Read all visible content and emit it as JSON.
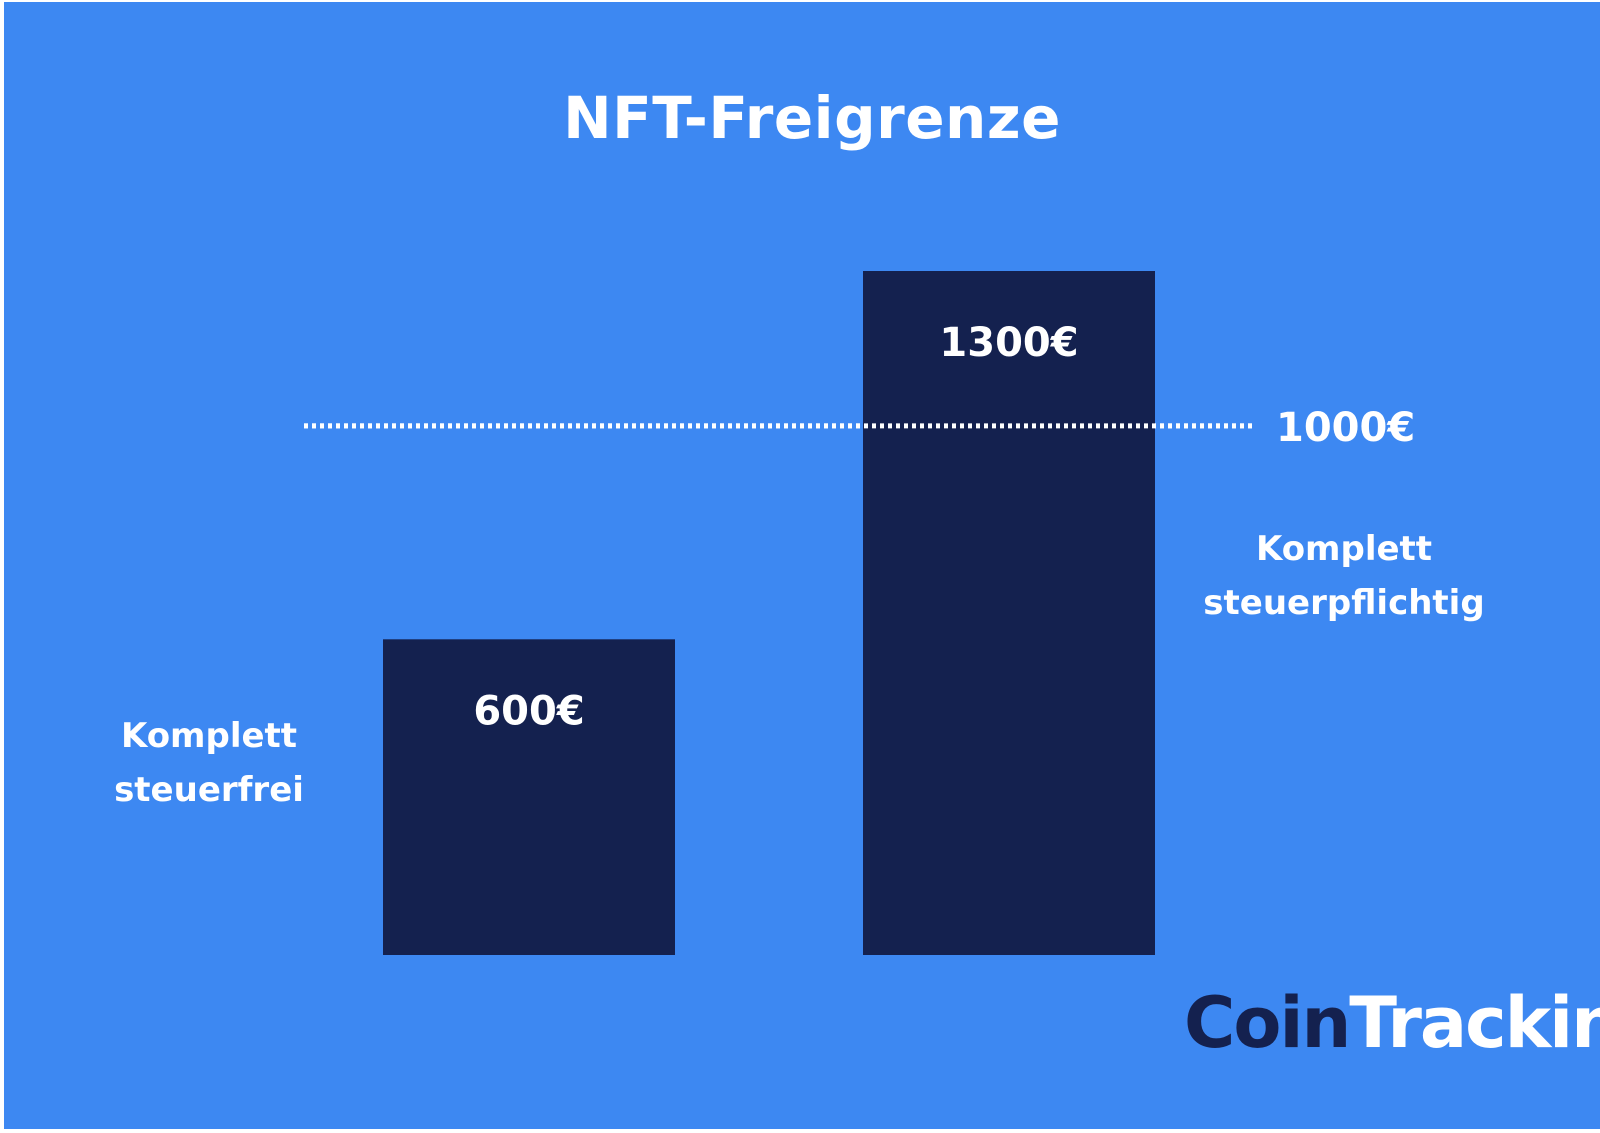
{
  "chart_data": {
    "type": "bar",
    "title": "NFT-Freigrenze",
    "categories": [
      "",
      ""
    ],
    "values": [
      600,
      1300
    ],
    "value_labels": [
      "600€",
      "1300€"
    ],
    "threshold": {
      "value": 1000,
      "label": "1000€",
      "style": "dotted"
    },
    "annotations": [
      {
        "text": "Komplett steuerfrei",
        "lines": [
          "Komplett",
          "steuerfrei"
        ]
      },
      {
        "text": "Komplett steuerpflichtig",
        "lines": [
          "Komplett",
          "steuerpflichtig"
        ]
      }
    ],
    "ylim": [
      0,
      1300
    ],
    "grid": false,
    "legend": "none",
    "colors": {
      "background": "#3d88f2",
      "bars": "#14214f",
      "text": "#ffffff",
      "threshold_line": "#ffffff"
    }
  },
  "logo": {
    "text_part1": "Coin",
    "text_part2": "Tracking",
    "trademark": "™"
  }
}
